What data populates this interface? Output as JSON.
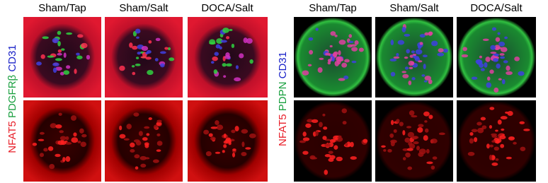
{
  "panels": [
    {
      "headers": [
        "Sham/Tap",
        "Sham/Salt",
        "DOCA/Salt"
      ],
      "stain_label": [
        "NFAT5",
        "PDGFRβ",
        "CD31"
      ]
    },
    {
      "headers": [
        "Sham/Tap",
        "Sham/Salt",
        "DOCA/Salt"
      ],
      "stain_label": [
        "NFAT5",
        "PDPN",
        "CD31"
      ]
    }
  ]
}
